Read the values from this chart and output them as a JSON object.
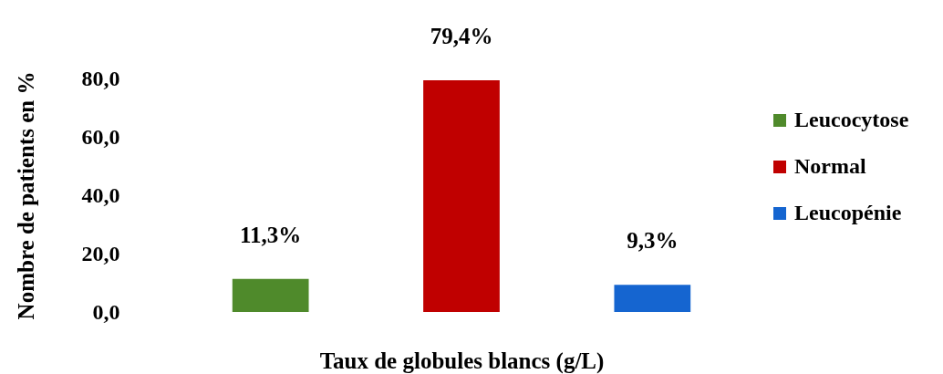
{
  "chart_data": {
    "type": "bar",
    "xlabel": "Taux de globules blancs (g/L)",
    "ylabel": "Nombre de patients en %",
    "categories": [
      null,
      null,
      null
    ],
    "stacked": true,
    "series": [
      {
        "name": "Leucocytose",
        "color": "#4f8a2b",
        "values": [
          11.3,
          null,
          null
        ],
        "value_labels": [
          "11,3%",
          null,
          null
        ]
      },
      {
        "name": "Normal",
        "color": "#c00000",
        "values": [
          null,
          79.4,
          null
        ],
        "value_labels": [
          null,
          "79,4%",
          null
        ]
      },
      {
        "name": "Leucopénie",
        "color": "#1565d0",
        "values": [
          null,
          null,
          9.3
        ],
        "value_labels": [
          null,
          null,
          "9,3%"
        ]
      }
    ],
    "ylim": [
      0,
      80
    ],
    "yticks": [
      {
        "value": 0,
        "label": "0,0"
      },
      {
        "value": 20,
        "label": "20,0"
      },
      {
        "value": 40,
        "label": "40,0"
      },
      {
        "value": 60,
        "label": "60,0"
      },
      {
        "value": 80,
        "label": "80,0"
      }
    ],
    "legend": "right"
  }
}
